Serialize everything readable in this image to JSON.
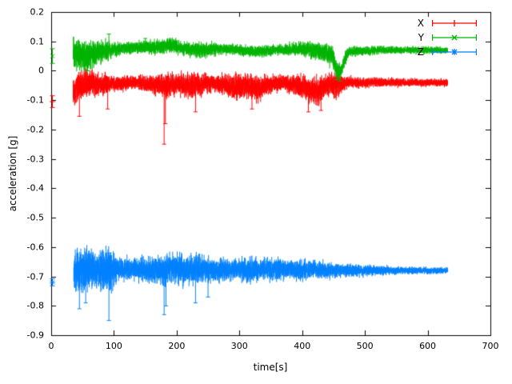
{
  "figure": {
    "background": "#ffffff",
    "border_color": "#000000"
  },
  "chart_data": {
    "type": "line",
    "style": "errorbars",
    "title": "",
    "xlabel": "time[s]",
    "ylabel": "acceleration [g]",
    "xlim": [
      0,
      700
    ],
    "ylim": [
      -0.9,
      0.2
    ],
    "xticks": [
      0,
      100,
      200,
      300,
      400,
      500,
      600,
      700
    ],
    "yticks": [
      0.2,
      0.1,
      0,
      -0.1,
      -0.2,
      -0.3,
      -0.4,
      -0.5,
      -0.6,
      -0.7,
      -0.8,
      -0.9
    ],
    "grid": false,
    "legend": {
      "position": "top-right",
      "entries": [
        {
          "label": "X",
          "color": "#ff0000",
          "marker": "plus"
        },
        {
          "label": "Y",
          "color": "#00b400",
          "marker": "cross"
        },
        {
          "label": "Z",
          "color": "#0080ff",
          "marker": "star"
        }
      ]
    },
    "series": [
      {
        "name": "X",
        "color": "#ff0000",
        "marker": "plus",
        "start": 35,
        "end": 632,
        "initial_point": {
          "t": 2,
          "v": -0.105,
          "err": 0.02
        },
        "envelope": [
          [
            35,
            -0.07,
            0.05
          ],
          [
            45,
            -0.05,
            0.06
          ],
          [
            60,
            -0.04,
            0.05
          ],
          [
            80,
            -0.05,
            0.045
          ],
          [
            100,
            -0.045,
            0.03
          ],
          [
            130,
            -0.04,
            0.025
          ],
          [
            160,
            -0.045,
            0.035
          ],
          [
            185,
            -0.05,
            0.05
          ],
          [
            200,
            -0.045,
            0.04
          ],
          [
            230,
            -0.05,
            0.05
          ],
          [
            260,
            -0.04,
            0.03
          ],
          [
            290,
            -0.055,
            0.05
          ],
          [
            310,
            -0.05,
            0.045
          ],
          [
            330,
            -0.06,
            0.05
          ],
          [
            350,
            -0.045,
            0.035
          ],
          [
            370,
            -0.04,
            0.03
          ],
          [
            390,
            -0.05,
            0.04
          ],
          [
            410,
            -0.06,
            0.05
          ],
          [
            425,
            -0.07,
            0.055
          ],
          [
            440,
            -0.05,
            0.045
          ],
          [
            455,
            -0.05,
            0.05
          ],
          [
            470,
            -0.04,
            0.022
          ],
          [
            520,
            -0.04,
            0.018
          ],
          [
            570,
            -0.04,
            0.016
          ],
          [
            632,
            -0.04,
            0.015
          ]
        ],
        "spikes": [
          [
            45,
            -0.155
          ],
          [
            90,
            -0.13
          ],
          [
            180,
            -0.25
          ],
          [
            182,
            -0.18
          ],
          [
            230,
            -0.14
          ],
          [
            320,
            -0.13
          ],
          [
            410,
            -0.14
          ],
          [
            430,
            -0.135
          ]
        ]
      },
      {
        "name": "Y",
        "color": "#00b400",
        "marker": "cross",
        "start": 35,
        "end": 632,
        "initial_point": {
          "t": 2,
          "v": 0.05,
          "err": 0.025
        },
        "envelope": [
          [
            35,
            0.06,
            0.055
          ],
          [
            50,
            0.05,
            0.06
          ],
          [
            70,
            0.06,
            0.05
          ],
          [
            90,
            0.07,
            0.04
          ],
          [
            110,
            0.075,
            0.025
          ],
          [
            140,
            0.08,
            0.022
          ],
          [
            170,
            0.08,
            0.03
          ],
          [
            190,
            0.088,
            0.03
          ],
          [
            210,
            0.075,
            0.025
          ],
          [
            240,
            0.07,
            0.03
          ],
          [
            270,
            0.075,
            0.02
          ],
          [
            300,
            0.07,
            0.02
          ],
          [
            330,
            0.065,
            0.025
          ],
          [
            360,
            0.07,
            0.02
          ],
          [
            390,
            0.075,
            0.025
          ],
          [
            410,
            0.07,
            0.03
          ],
          [
            430,
            0.065,
            0.035
          ],
          [
            448,
            0.05,
            0.04
          ],
          [
            455,
            0.0,
            0.035
          ],
          [
            462,
            -0.005,
            0.03
          ],
          [
            468,
            0.04,
            0.03
          ],
          [
            475,
            0.065,
            0.02
          ],
          [
            520,
            0.07,
            0.016
          ],
          [
            632,
            0.07,
            0.013
          ]
        ],
        "spikes": [
          [
            58,
            0.0
          ],
          [
            92,
            0.125
          ],
          [
            150,
            0.11
          ],
          [
            455,
            -0.03
          ],
          [
            460,
            -0.035
          ]
        ]
      },
      {
        "name": "Z",
        "color": "#0080ff",
        "marker": "star",
        "start": 36,
        "end": 632,
        "initial_point": {
          "t": 2,
          "v": -0.72,
          "err": 0.012
        },
        "envelope": [
          [
            36,
            -0.68,
            0.07
          ],
          [
            45,
            -0.68,
            0.09
          ],
          [
            60,
            -0.67,
            0.08
          ],
          [
            75,
            -0.68,
            0.07
          ],
          [
            90,
            -0.68,
            0.09
          ],
          [
            105,
            -0.675,
            0.05
          ],
          [
            130,
            -0.675,
            0.04
          ],
          [
            160,
            -0.68,
            0.05
          ],
          [
            180,
            -0.68,
            0.06
          ],
          [
            200,
            -0.675,
            0.055
          ],
          [
            220,
            -0.68,
            0.06
          ],
          [
            240,
            -0.675,
            0.05
          ],
          [
            270,
            -0.68,
            0.045
          ],
          [
            300,
            -0.675,
            0.04
          ],
          [
            315,
            -0.68,
            0.05
          ],
          [
            340,
            -0.675,
            0.04
          ],
          [
            360,
            -0.68,
            0.045
          ],
          [
            380,
            -0.675,
            0.035
          ],
          [
            400,
            -0.68,
            0.04
          ],
          [
            420,
            -0.675,
            0.035
          ],
          [
            440,
            -0.68,
            0.03
          ],
          [
            470,
            -0.68,
            0.025
          ],
          [
            510,
            -0.68,
            0.02
          ],
          [
            560,
            -0.68,
            0.015
          ],
          [
            632,
            -0.68,
            0.012
          ]
        ],
        "spikes": [
          [
            45,
            -0.81
          ],
          [
            55,
            -0.79
          ],
          [
            92,
            -0.85
          ],
          [
            93,
            -0.62
          ],
          [
            180,
            -0.83
          ],
          [
            183,
            -0.8
          ],
          [
            230,
            -0.79
          ],
          [
            250,
            -0.77
          ]
        ]
      }
    ]
  },
  "layout_note": ""
}
